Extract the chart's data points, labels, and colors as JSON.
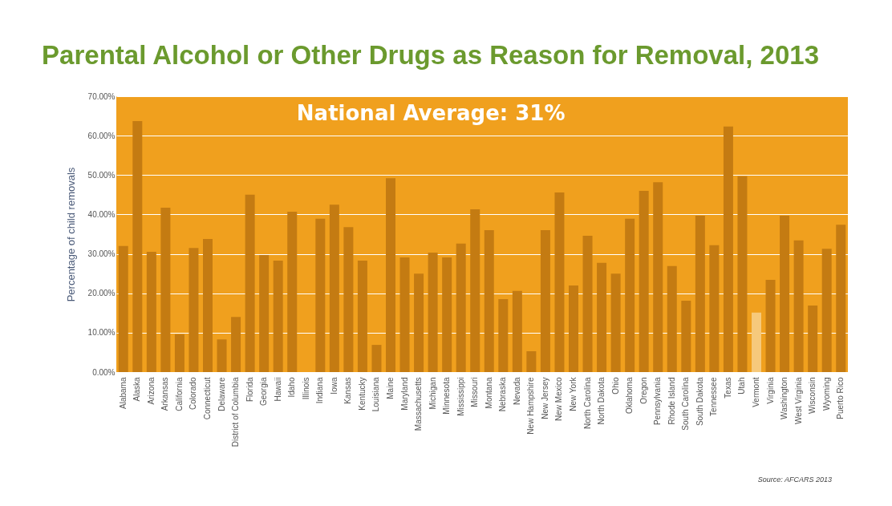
{
  "chart_data": {
    "type": "bar",
    "title": "Parental Alcohol or Other Drugs as Reason for Removal, 2013",
    "ylabel": "Percentage of child removals",
    "categories": [
      "Alabama",
      "Alaska",
      "Arizona",
      "Arkansas",
      "California",
      "Colorado",
      "Connecticut",
      "Delaware",
      "District of Columbia",
      "Florida",
      "Georgia",
      "Hawaii",
      "Idaho",
      "Illinois",
      "Indiana",
      "Iowa",
      "Kansas",
      "Kentucky",
      "Louisiana",
      "Maine",
      "Maryland",
      "Massachusetts",
      "Michigan",
      "Minnesota",
      "Mississippi",
      "Missouri",
      "Montana",
      "Nebraska",
      "Nevada",
      "New Hampshire",
      "New Jersey",
      "New Mexico",
      "New York",
      "North Carolina",
      "North Dakota",
      "Ohio",
      "Oklahoma",
      "Oregon",
      "Pennsylvania",
      "Rhode Island",
      "South Carolina",
      "South Dakota",
      "Tennessee",
      "Texas",
      "Utah",
      "Vermont",
      "Virginia",
      "Washington",
      "West Virginia",
      "Wisconsin",
      "Wyoming",
      "Puerto Rico"
    ],
    "values": [
      32.0,
      63.7,
      30.5,
      41.7,
      9.6,
      31.5,
      33.8,
      8.3,
      14.0,
      45.0,
      29.7,
      28.3,
      40.7,
      null,
      38.9,
      42.5,
      36.8,
      28.3,
      6.9,
      49.2,
      29.1,
      25.0,
      30.3,
      29.1,
      32.6,
      41.3,
      36.0,
      18.5,
      20.6,
      5.3,
      36.0,
      45.6,
      22.0,
      34.6,
      27.7,
      25.0,
      38.9,
      46.0,
      48.2,
      26.9,
      18.1,
      39.7,
      32.2,
      62.3,
      49.7,
      15.1,
      23.4,
      39.7,
      33.4,
      16.9,
      31.3,
      37.4
    ],
    "colors": [
      "#c47b12",
      "#c47b12",
      "#c47b12",
      "#c47b12",
      "#c47b12",
      "#c47b12",
      "#c47b12",
      "#c47b12",
      "#c47b12",
      "#c47b12",
      "#c47b12",
      "#c47b12",
      "#c47b12",
      "#c47b12",
      "#c47b12",
      "#c47b12",
      "#c47b12",
      "#c47b12",
      "#c47b12",
      "#c47b12",
      "#c47b12",
      "#c47b12",
      "#c47b12",
      "#c47b12",
      "#c47b12",
      "#c47b12",
      "#c47b12",
      "#c47b12",
      "#c47b12",
      "#c47b12",
      "#c47b12",
      "#c47b12",
      "#c47b12",
      "#c47b12",
      "#c47b12",
      "#c47b12",
      "#c47b12",
      "#c47b12",
      "#c47b12",
      "#c47b12",
      "#c47b12",
      "#c47b12",
      "#c47b12",
      "#c47b12",
      "#c47b12",
      "#f6c97c",
      "#c47b12",
      "#c47b12",
      "#c47b12",
      "#c47b12",
      "#c47b12",
      "#c47b12"
    ],
    "ylim": [
      0,
      70
    ],
    "yticks": [
      {
        "value": 0,
        "label": "0.00%"
      },
      {
        "value": 10,
        "label": "10.00%"
      },
      {
        "value": 20,
        "label": "20.00%"
      },
      {
        "value": 30,
        "label": "30.00%"
      },
      {
        "value": 40,
        "label": "40.00%"
      },
      {
        "value": 50,
        "label": "50.00%"
      },
      {
        "value": 60,
        "label": "60.00%"
      },
      {
        "value": 70,
        "label": "70.00%"
      }
    ],
    "grid": "y",
    "annotations": [
      "National Average: 31%",
      "Source: AFCARS 2013"
    ]
  }
}
